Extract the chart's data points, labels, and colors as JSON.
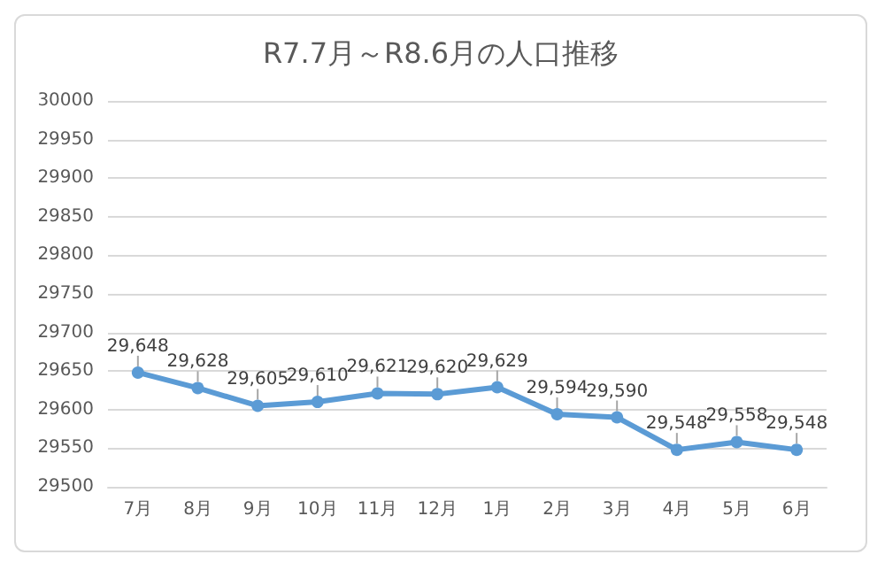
{
  "chart_data": {
    "type": "line",
    "title": "R7.7月～R8.6月の人口推移",
    "categories": [
      "7月",
      "8月",
      "9月",
      "10月",
      "11月",
      "12月",
      "1月",
      "2月",
      "3月",
      "4月",
      "5月",
      "6月"
    ],
    "series": [
      {
        "color": "#5b9bd5",
        "values": [
          29648,
          29628,
          29605,
          29610,
          29621,
          29620,
          29629,
          29594,
          29590,
          29548,
          29558,
          29548
        ],
        "value_labels": [
          "29,648",
          "29,628",
          "29,605",
          "29,610",
          "29,621",
          "29,620",
          "29,629",
          "29,594",
          "29,590",
          "29,548",
          "29,558",
          "29,548"
        ]
      }
    ],
    "ylim": [
      29500,
      30000
    ],
    "yticks": [
      29500,
      29550,
      29600,
      29650,
      29700,
      29750,
      29800,
      29850,
      29900,
      29950,
      30000
    ],
    "grid": "y",
    "marker": "circle",
    "line_style": "solid"
  }
}
